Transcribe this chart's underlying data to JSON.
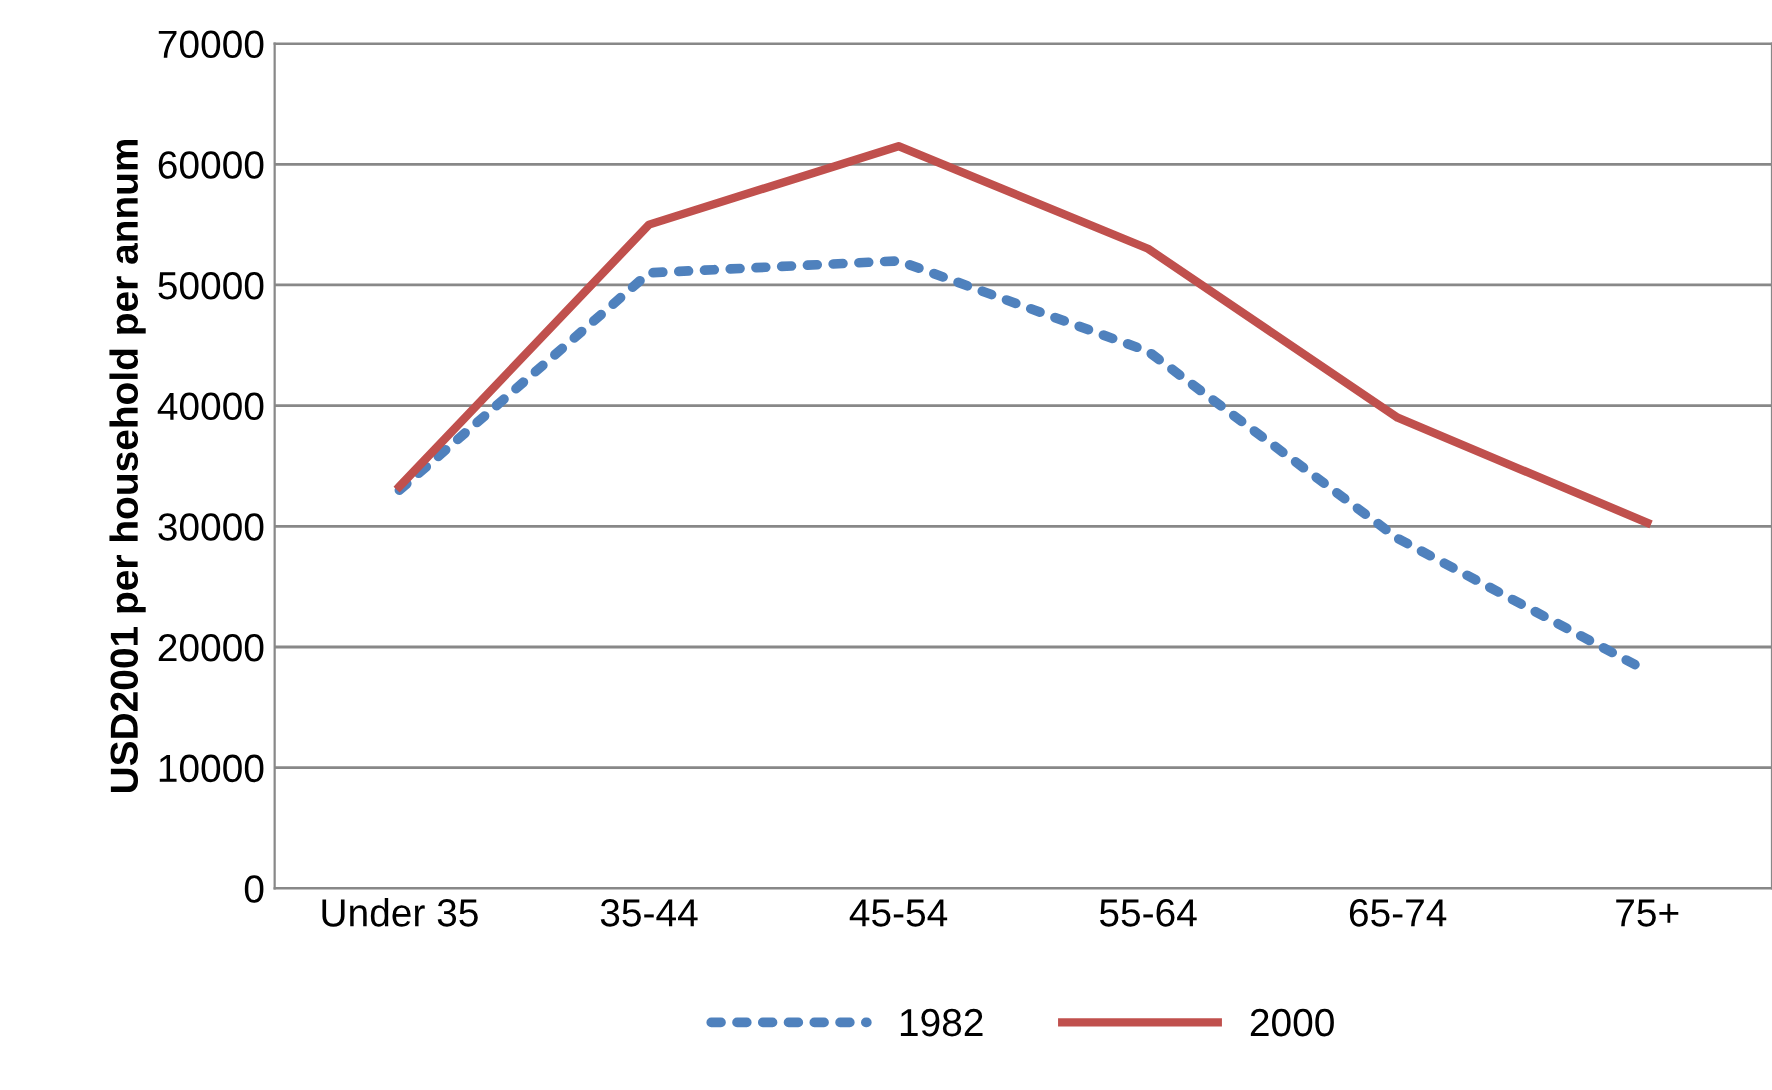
{
  "chart_data": {
    "type": "line",
    "ylabel": "USD2001 per household per annum",
    "categories": [
      "Under 35",
      "35-44",
      "45-54",
      "55-64",
      "65-74",
      "75+"
    ],
    "series": [
      {
        "name": "1982",
        "color": "#4f81bd",
        "line_style": "dotted",
        "values": [
          33000,
          51000,
          52000,
          44500,
          29000,
          18000
        ]
      },
      {
        "name": "2000",
        "color": "#c0504d",
        "line_style": "solid",
        "values": [
          33300,
          55000,
          61500,
          53000,
          39000,
          30300
        ]
      }
    ],
    "ylim": [
      0,
      70000
    ],
    "yticks": [
      0,
      10000,
      20000,
      30000,
      40000,
      50000,
      60000,
      70000
    ],
    "grid": "y",
    "legend": "bottom",
    "marker": "none"
  }
}
